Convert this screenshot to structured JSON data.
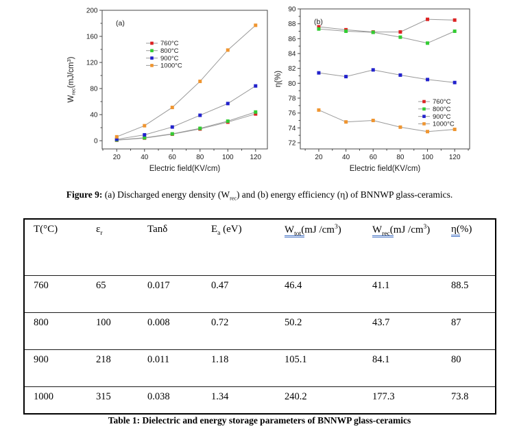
{
  "figure_caption": {
    "label": "Figure 9:",
    "pre": " (a) Discharged energy density (W",
    "sub": "rec",
    "post": ") and (b) energy efficiency (η) of BNNWP glass-ceramics."
  },
  "table": {
    "columns": [
      {
        "parts": [
          {
            "t": "T(°C)"
          }
        ]
      },
      {
        "parts": [
          {
            "t": "ε"
          },
          {
            "t": "r",
            "sub": true
          }
        ]
      },
      {
        "parts": [
          {
            "t": "Tanδ"
          }
        ]
      },
      {
        "parts": [
          {
            "t": "E"
          },
          {
            "t": "a",
            "sub": true
          },
          {
            "t": " (eV)"
          }
        ]
      },
      {
        "parts": [
          {
            "t": "W",
            "u": true
          },
          {
            "t": "tot",
            "sub": true,
            "u": true
          },
          {
            "t": "(",
            "u": true
          },
          {
            "t": "mJ /cm"
          },
          {
            "t": "3",
            "sup": true
          },
          {
            "t": ")"
          }
        ]
      },
      {
        "parts": [
          {
            "t": "W",
            "u": true
          },
          {
            "t": "rec",
            "sub": true,
            "u": true
          },
          {
            "t": "(",
            "u": true
          },
          {
            "t": "mJ /cm"
          },
          {
            "t": "3",
            "sup": true
          },
          {
            "t": ")"
          }
        ]
      },
      {
        "parts": [
          {
            "t": "η",
            "u": true
          },
          {
            "t": "(",
            "u": true
          },
          {
            "t": "%)"
          }
        ]
      }
    ],
    "rows": [
      [
        "760",
        "65",
        "0.017",
        "0.47",
        "46.4",
        "41.1",
        "88.5"
      ],
      [
        "800",
        "100",
        "0.008",
        "0.72",
        "50.2",
        "43.7",
        "87"
      ],
      [
        "900",
        "218",
        "0.011",
        "1.18",
        "105.1",
        "84.1",
        "80"
      ],
      [
        "1000",
        "315",
        "0.038",
        "1.34",
        "240.2",
        "177.3",
        "73.8"
      ]
    ],
    "caption": "Table 1: Dielectric and energy storage parameters of BNNWP glass-ceramics"
  },
  "chart_data": [
    {
      "type": "line",
      "panel_label": "(a)",
      "title": "",
      "xlabel": "Electric field(KV/cm)",
      "ylabel_parts": [
        {
          "t": "W"
        },
        {
          "t": "rec",
          "sub": true
        },
        {
          "t": "(mJ/cm"
        },
        {
          "t": "3",
          "sup": true
        },
        {
          "t": ")"
        }
      ],
      "x": [
        20,
        40,
        60,
        80,
        100,
        120
      ],
      "series": [
        {
          "name": "760°C",
          "color": "#dd2222",
          "values": [
            0.8,
            4,
            10,
            18,
            28.5,
            41
          ]
        },
        {
          "name": "800°C",
          "color": "#33cc33",
          "values": [
            1.2,
            4.5,
            10.5,
            19,
            30,
            44
          ]
        },
        {
          "name": "900°C",
          "color": "#2222cc",
          "values": [
            2.2,
            9,
            21,
            39,
            57,
            84
          ]
        },
        {
          "name": "1000°C",
          "color": "#ef9530",
          "values": [
            6,
            23,
            51,
            91,
            139,
            177
          ]
        }
      ],
      "line_color": "#999999",
      "xlim": [
        9.5,
        128.5
      ],
      "ylim": [
        -12.6,
        200
      ],
      "xticks": [
        20,
        40,
        60,
        80,
        100,
        120
      ],
      "yticks": [
        0,
        40,
        80,
        120,
        160,
        200
      ],
      "xminor": [
        10,
        30,
        50,
        70,
        90,
        110
      ],
      "yminor": [
        20,
        60,
        100,
        140,
        180
      ],
      "grid": false,
      "legend_position": "upper-left-inside"
    },
    {
      "type": "line",
      "panel_label": "(b)",
      "title": "",
      "xlabel": "Electric field(KV/cm)",
      "ylabel_parts": [
        {
          "t": "η(%)"
        }
      ],
      "x": [
        20,
        40,
        60,
        80,
        100,
        120
      ],
      "series": [
        {
          "name": "760°C",
          "color": "#dd2222",
          "values": [
            87.6,
            87.2,
            86.9,
            86.9,
            88.6,
            88.5
          ]
        },
        {
          "name": "800°C",
          "color": "#33cc33",
          "values": [
            87.3,
            87.0,
            86.85,
            86.2,
            85.4,
            87.0
          ]
        },
        {
          "name": "900°C",
          "color": "#2222cc",
          "values": [
            81.4,
            80.9,
            81.8,
            81.1,
            80.5,
            80.1
          ]
        },
        {
          "name": "1000°C",
          "color": "#ef9530",
          "values": [
            76.4,
            74.8,
            75.0,
            74.1,
            73.5,
            73.8
          ]
        }
      ],
      "line_color": "#999999",
      "xlim": [
        6.4,
        131
      ],
      "ylim": [
        71.17,
        90
      ],
      "xticks": [
        20,
        40,
        60,
        80,
        100,
        120
      ],
      "yticks": [
        72,
        74,
        76,
        78,
        80,
        82,
        84,
        86,
        88,
        90
      ],
      "xminor": [
        10,
        30,
        50,
        70,
        90,
        110,
        130
      ],
      "yminor": [
        73,
        75,
        77,
        79,
        81,
        83,
        85,
        87,
        89
      ],
      "grid": false,
      "legend_position": "lower-right-inside"
    }
  ]
}
